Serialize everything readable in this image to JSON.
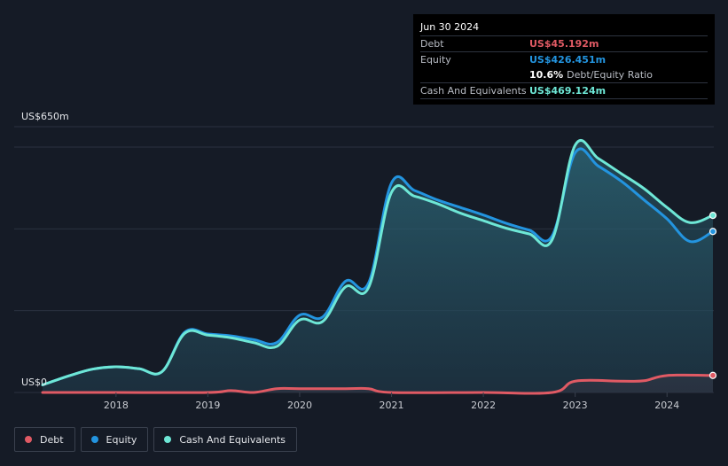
{
  "tooltip": {
    "date": "Jun 30 2024",
    "debt_label": "Debt",
    "debt_value": "US$45.192m",
    "equity_label": "Equity",
    "equity_value": "US$426.451m",
    "ratio_value": "10.6%",
    "ratio_label": "Debt/Equity Ratio",
    "cash_label": "Cash And Equivalents",
    "cash_value": "US$469.124m"
  },
  "legend": {
    "debt": "Debt",
    "equity": "Equity",
    "cash": "Cash And Equivalents"
  },
  "colors": {
    "debt": "#e05a64",
    "equity": "#2394df",
    "cash": "#6ee7d6",
    "background": "#151b26"
  },
  "chart_data": {
    "type": "area",
    "y_unit": "US$m",
    "ylim": [
      0,
      650
    ],
    "y_tick_labels": [
      {
        "value": 0,
        "label": "US$0"
      },
      {
        "value": 650,
        "label": "US$650m"
      }
    ],
    "x_tick_labels": [
      "2018",
      "2019",
      "2020",
      "2021",
      "2022",
      "2023",
      "2024"
    ],
    "xlim": [
      2017.2,
      2024.5
    ],
    "grid": true,
    "legend_position": "bottom-left",
    "series": [
      {
        "name": "Debt",
        "color_key": "debt",
        "x": [
          2017.2,
          2018.0,
          2019.0,
          2019.25,
          2019.5,
          2019.75,
          2020.0,
          2020.5,
          2020.75,
          2021.0,
          2022.0,
          2022.75,
          2023.0,
          2023.5,
          2023.75,
          2024.0,
          2024.5
        ],
        "values": [
          0,
          0,
          0,
          5,
          0,
          10,
          10,
          10,
          10,
          0,
          0,
          0,
          30,
          30,
          31,
          45,
          45.2
        ]
      },
      {
        "name": "Equity",
        "color_key": "equity",
        "x": [
          2017.2,
          2017.5,
          2017.75,
          2018.0,
          2018.25,
          2018.5,
          2018.75,
          2019.0,
          2019.25,
          2019.5,
          2019.75,
          2020.0,
          2020.25,
          2020.5,
          2020.75,
          2021.0,
          2021.25,
          2021.5,
          2021.75,
          2022.0,
          2022.25,
          2022.5,
          2022.75,
          2023.0,
          2023.25,
          2023.5,
          2023.75,
          2024.0,
          2024.25,
          2024.5
        ],
        "values": [
          20,
          45,
          62,
          68,
          63,
          55,
          160,
          155,
          150,
          140,
          132,
          205,
          200,
          295,
          290,
          555,
          535,
          510,
          490,
          470,
          448,
          430,
          415,
          635,
          600,
          560,
          510,
          460,
          400,
          426.5
        ]
      },
      {
        "name": "Cash And Equivalents",
        "color_key": "cash",
        "x": [
          2017.2,
          2017.5,
          2017.75,
          2018.0,
          2018.25,
          2018.5,
          2018.75,
          2019.0,
          2019.25,
          2019.5,
          2019.75,
          2020.0,
          2020.25,
          2020.5,
          2020.75,
          2021.0,
          2021.25,
          2021.5,
          2021.75,
          2022.0,
          2022.25,
          2022.5,
          2022.75,
          2023.0,
          2023.25,
          2023.5,
          2023.75,
          2024.0,
          2024.25,
          2024.5
        ],
        "values": [
          20,
          45,
          62,
          68,
          63,
          55,
          157,
          152,
          145,
          132,
          122,
          192,
          188,
          280,
          278,
          530,
          520,
          500,
          475,
          455,
          435,
          420,
          405,
          655,
          620,
          580,
          540,
          490,
          450,
          469.1
        ]
      }
    ]
  }
}
